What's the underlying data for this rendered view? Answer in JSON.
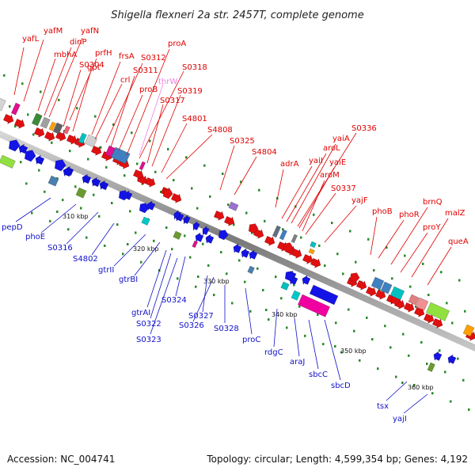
{
  "title": "Shigella flexneri 2a str. 2457T, complete genome",
  "footer": {
    "accession": "Accession: NC_004741",
    "topology": "Topology: circular; Length: 4,599,354 bp; Genes: 4,192"
  },
  "colors": {
    "forward_label": "#e00000",
    "reverse_label": "#1010c8",
    "rna_label": "#f080e0",
    "backbone": "#8a8a8a",
    "tick": "#2a8a2a"
  },
  "scale": {
    "ticks": [
      "310 kbp",
      "320 kbp",
      "330 kbp",
      "340 kbp",
      "350 kbp",
      "360 kbp"
    ]
  },
  "forward_genes": [
    "yafL",
    "yafM",
    "mbhA",
    "dinP",
    "yafN",
    "prfH",
    "S0304",
    "gpt",
    "frsA",
    "crl",
    "S0312",
    "S0311",
    "proB",
    "proA",
    "S0318",
    "S0317",
    "S0319",
    "S4801",
    "S4808",
    "S0325",
    "S4804",
    "adrA",
    "yaiI",
    "aroL",
    "yaiA",
    "S0336",
    "yaiE",
    "aroM",
    "S0337",
    "yajF",
    "phoB",
    "phoR",
    "brnQ",
    "proY",
    "malZ",
    "queA"
  ],
  "rna_genes": [
    "thrW"
  ],
  "reverse_genes": [
    "pepD",
    "phoE",
    "S0316",
    "S4802",
    "gtrII",
    "gtrBI",
    "gtrAI",
    "S0322",
    "S0323",
    "S0324",
    "S0327",
    "S0326",
    "S0328",
    "proC",
    "rdgC",
    "araJ",
    "sbcC",
    "sbcD",
    "tsx",
    "yajI"
  ]
}
